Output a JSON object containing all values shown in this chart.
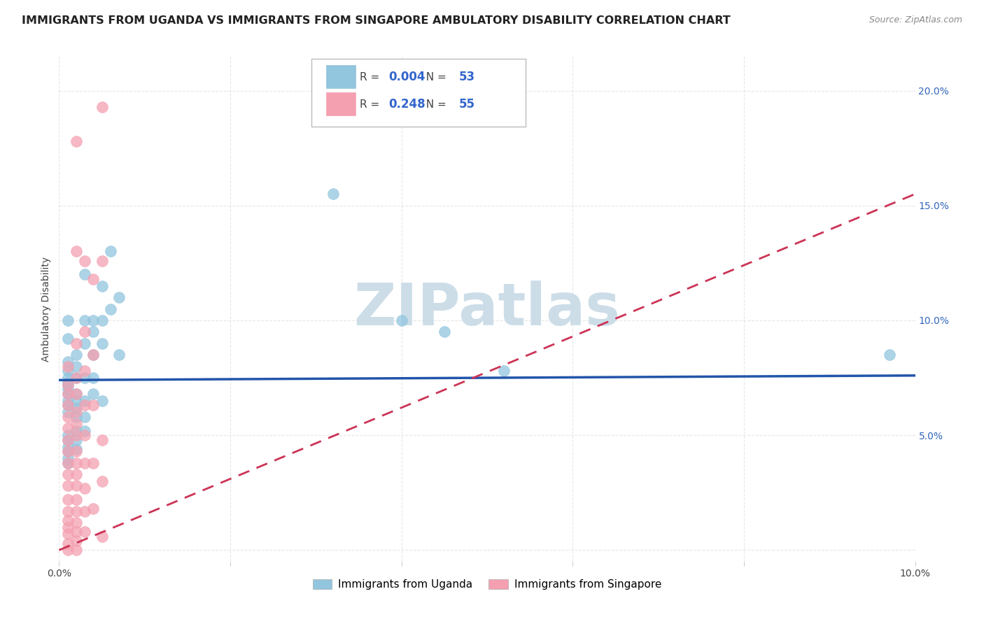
{
  "title": "IMMIGRANTS FROM UGANDA VS IMMIGRANTS FROM SINGAPORE AMBULATORY DISABILITY CORRELATION CHART",
  "source": "Source: ZipAtlas.com",
  "ylabel": "Ambulatory Disability",
  "xlim": [
    0.0,
    0.1
  ],
  "ylim": [
    -0.005,
    0.215
  ],
  "legend_labels": [
    "Immigrants from Uganda",
    "Immigrants from Singapore"
  ],
  "legend_r_n": [
    {
      "R": "0.004",
      "N": "53",
      "color": "#92c5de"
    },
    {
      "R": "0.248",
      "N": "55",
      "color": "#f4a0b0"
    }
  ],
  "uganda_color": "#92c5de",
  "singapore_color": "#f4a0b0",
  "uganda_line_color": "#2255aa",
  "singapore_line_color": "#cc3355",
  "watermark": "ZIPatlas",
  "watermark_color": "#ccdde8",
  "background_color": "#ffffff",
  "grid_color": "#dddddd",
  "title_fontsize": 11.5,
  "source_fontsize": 9,
  "uganda_points": [
    [
      0.001,
      0.072
    ],
    [
      0.001,
      0.092
    ],
    [
      0.001,
      0.1
    ],
    [
      0.001,
      0.082
    ],
    [
      0.001,
      0.078
    ],
    [
      0.001,
      0.068
    ],
    [
      0.001,
      0.073
    ],
    [
      0.001,
      0.065
    ],
    [
      0.001,
      0.07
    ],
    [
      0.001,
      0.063
    ],
    [
      0.001,
      0.06
    ],
    [
      0.001,
      0.075
    ],
    [
      0.001,
      0.05
    ],
    [
      0.001,
      0.048
    ],
    [
      0.001,
      0.045
    ],
    [
      0.001,
      0.043
    ],
    [
      0.001,
      0.04
    ],
    [
      0.001,
      0.038
    ],
    [
      0.002,
      0.085
    ],
    [
      0.002,
      0.08
    ],
    [
      0.002,
      0.075
    ],
    [
      0.002,
      0.068
    ],
    [
      0.002,
      0.065
    ],
    [
      0.002,
      0.062
    ],
    [
      0.002,
      0.058
    ],
    [
      0.002,
      0.052
    ],
    [
      0.002,
      0.048
    ],
    [
      0.002,
      0.044
    ],
    [
      0.003,
      0.09
    ],
    [
      0.003,
      0.12
    ],
    [
      0.003,
      0.1
    ],
    [
      0.003,
      0.075
    ],
    [
      0.003,
      0.065
    ],
    [
      0.003,
      0.058
    ],
    [
      0.003,
      0.052
    ],
    [
      0.004,
      0.095
    ],
    [
      0.004,
      0.085
    ],
    [
      0.004,
      0.1
    ],
    [
      0.004,
      0.075
    ],
    [
      0.004,
      0.068
    ],
    [
      0.005,
      0.115
    ],
    [
      0.005,
      0.1
    ],
    [
      0.005,
      0.09
    ],
    [
      0.005,
      0.065
    ],
    [
      0.006,
      0.13
    ],
    [
      0.006,
      0.105
    ],
    [
      0.007,
      0.11
    ],
    [
      0.007,
      0.085
    ],
    [
      0.032,
      0.155
    ],
    [
      0.04,
      0.1
    ],
    [
      0.045,
      0.095
    ],
    [
      0.052,
      0.078
    ],
    [
      0.097,
      0.085
    ]
  ],
  "singapore_points": [
    [
      0.001,
      0.08
    ],
    [
      0.001,
      0.072
    ],
    [
      0.001,
      0.068
    ],
    [
      0.001,
      0.063
    ],
    [
      0.001,
      0.058
    ],
    [
      0.001,
      0.053
    ],
    [
      0.001,
      0.048
    ],
    [
      0.001,
      0.043
    ],
    [
      0.001,
      0.038
    ],
    [
      0.001,
      0.033
    ],
    [
      0.001,
      0.028
    ],
    [
      0.001,
      0.022
    ],
    [
      0.001,
      0.017
    ],
    [
      0.001,
      0.013
    ],
    [
      0.001,
      0.01
    ],
    [
      0.001,
      0.007
    ],
    [
      0.001,
      0.003
    ],
    [
      0.001,
      0.0
    ],
    [
      0.002,
      0.09
    ],
    [
      0.002,
      0.178
    ],
    [
      0.002,
      0.13
    ],
    [
      0.002,
      0.075
    ],
    [
      0.002,
      0.068
    ],
    [
      0.002,
      0.06
    ],
    [
      0.002,
      0.055
    ],
    [
      0.002,
      0.05
    ],
    [
      0.002,
      0.043
    ],
    [
      0.002,
      0.038
    ],
    [
      0.002,
      0.033
    ],
    [
      0.002,
      0.028
    ],
    [
      0.002,
      0.022
    ],
    [
      0.002,
      0.017
    ],
    [
      0.002,
      0.012
    ],
    [
      0.002,
      0.008
    ],
    [
      0.002,
      0.004
    ],
    [
      0.002,
      0.0
    ],
    [
      0.003,
      0.126
    ],
    [
      0.003,
      0.095
    ],
    [
      0.003,
      0.078
    ],
    [
      0.003,
      0.063
    ],
    [
      0.003,
      0.05
    ],
    [
      0.003,
      0.038
    ],
    [
      0.003,
      0.027
    ],
    [
      0.003,
      0.017
    ],
    [
      0.003,
      0.008
    ],
    [
      0.004,
      0.118
    ],
    [
      0.004,
      0.085
    ],
    [
      0.004,
      0.063
    ],
    [
      0.004,
      0.038
    ],
    [
      0.004,
      0.018
    ],
    [
      0.005,
      0.193
    ],
    [
      0.005,
      0.126
    ],
    [
      0.005,
      0.048
    ],
    [
      0.005,
      0.006
    ],
    [
      0.005,
      0.03
    ]
  ],
  "uganda_line": {
    "x0": 0.0,
    "x1": 0.1,
    "y0": 0.074,
    "y1": 0.076
  },
  "singapore_line": {
    "x0": 0.0,
    "x1": 0.1,
    "y0": 0.0,
    "y1": 0.155
  }
}
